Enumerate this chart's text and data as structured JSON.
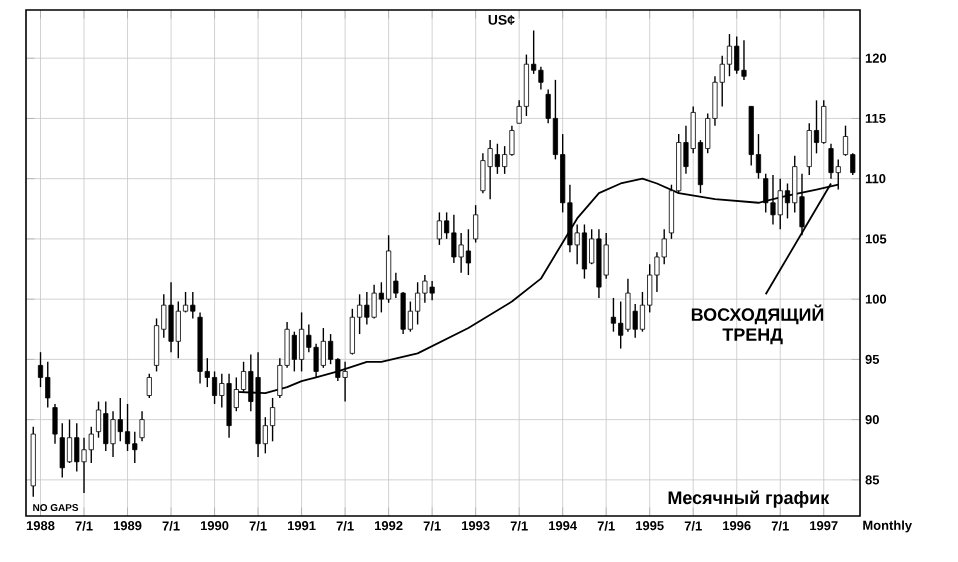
{
  "chart_data": {
    "type": "candlestick",
    "title": "US¢",
    "x": [
      "1987-12",
      "1988-01",
      "1988-02",
      "1988-03",
      "1988-04",
      "1988-05",
      "1988-06",
      "1988-07",
      "1988-08",
      "1988-09",
      "1988-10",
      "1988-11",
      "1988-12",
      "1989-01",
      "1989-02",
      "1989-03",
      "1989-04",
      "1989-05",
      "1989-06",
      "1989-07",
      "1989-08",
      "1989-09",
      "1989-10",
      "1989-11",
      "1989-12",
      "1990-01",
      "1990-02",
      "1990-03",
      "1990-04",
      "1990-05",
      "1990-06",
      "1990-07",
      "1990-08",
      "1990-09",
      "1990-10",
      "1990-11",
      "1990-12",
      "1991-01",
      "1991-02",
      "1991-03",
      "1991-04",
      "1991-05",
      "1991-06",
      "1991-07",
      "1991-08",
      "1991-09",
      "1991-10",
      "1991-11",
      "1991-12",
      "1992-01",
      "1992-02",
      "1992-03",
      "1992-04",
      "1992-05",
      "1992-06",
      "1992-07",
      "1992-08",
      "1992-09",
      "1992-10",
      "1992-11",
      "1992-12",
      "1993-01",
      "1993-02",
      "1993-03",
      "1993-04",
      "1993-05",
      "1993-06",
      "1993-07",
      "1993-08",
      "1993-09",
      "1993-10",
      "1993-11",
      "1993-12",
      "1994-01",
      "1994-02",
      "1994-03",
      "1994-04",
      "1994-05",
      "1994-06",
      "1994-07",
      "1994-08",
      "1994-09",
      "1994-10",
      "1994-11",
      "1994-12",
      "1995-01",
      "1995-02",
      "1995-03",
      "1995-04",
      "1995-05",
      "1995-06",
      "1995-07",
      "1995-08",
      "1995-09",
      "1995-10",
      "1995-11",
      "1995-12",
      "1996-01",
      "1996-02",
      "1996-03",
      "1996-04",
      "1996-05",
      "1996-06",
      "1996-07",
      "1996-08",
      "1996-09",
      "1996-10",
      "1996-11",
      "1996-12",
      "1997-01",
      "1997-02",
      "1997-03",
      "1997-04",
      "1997-05"
    ],
    "ohlc": [
      [
        84.5,
        89.4,
        83.6,
        88.8
      ],
      [
        94.5,
        95.6,
        92.7,
        93.5
      ],
      [
        93.5,
        94.8,
        91.0,
        91.8
      ],
      [
        91.0,
        91.3,
        88.0,
        88.8
      ],
      [
        88.5,
        89.7,
        85.2,
        86.0
      ],
      [
        86.5,
        90.0,
        86.4,
        88.5
      ],
      [
        88.5,
        89.7,
        85.7,
        86.5
      ],
      [
        86.5,
        88.5,
        83.9,
        87.5
      ],
      [
        87.5,
        89.4,
        86.4,
        88.8
      ],
      [
        89.0,
        91.5,
        88.5,
        90.8
      ],
      [
        90.5,
        91.5,
        87.4,
        88.0
      ],
      [
        88.0,
        90.7,
        86.9,
        90.0
      ],
      [
        90.0,
        91.8,
        88.2,
        89.0
      ],
      [
        89.0,
        91.3,
        87.4,
        88.0
      ],
      [
        88.0,
        89.0,
        86.4,
        87.5
      ],
      [
        88.5,
        90.7,
        88.2,
        90.0
      ],
      [
        92.0,
        93.8,
        91.8,
        93.5
      ],
      [
        94.5,
        98.4,
        94.0,
        97.8
      ],
      [
        97.5,
        100.4,
        96.8,
        99.5
      ],
      [
        99.5,
        101.4,
        95.6,
        96.5
      ],
      [
        96.5,
        99.8,
        95.1,
        99.0
      ],
      [
        99.0,
        100.6,
        98.9,
        99.5
      ],
      [
        99.5,
        100.6,
        98.4,
        99.0
      ],
      [
        98.5,
        98.9,
        93.0,
        94.0
      ],
      [
        94.0,
        95.1,
        92.7,
        93.5
      ],
      [
        93.5,
        94.0,
        91.3,
        92.0
      ],
      [
        92.0,
        93.8,
        91.0,
        93.0
      ],
      [
        93.0,
        93.8,
        88.5,
        89.5
      ],
      [
        91.0,
        93.5,
        90.7,
        92.5
      ],
      [
        92.5,
        94.8,
        92.3,
        94.0
      ],
      [
        94.0,
        95.4,
        90.7,
        91.5
      ],
      [
        93.5,
        95.6,
        86.9,
        88.0
      ],
      [
        88.0,
        90.2,
        87.2,
        89.5
      ],
      [
        89.5,
        91.8,
        88.2,
        91.0
      ],
      [
        92.0,
        95.1,
        91.8,
        94.5
      ],
      [
        94.5,
        98.1,
        94.3,
        97.5
      ],
      [
        97.0,
        97.3,
        94.0,
        95.0
      ],
      [
        95.0,
        98.9,
        94.0,
        97.5
      ],
      [
        97.0,
        97.9,
        95.6,
        96.0
      ],
      [
        96.0,
        96.3,
        93.5,
        94.0
      ],
      [
        94.5,
        97.6,
        94.3,
        96.5
      ],
      [
        96.5,
        97.1,
        94.6,
        95.0
      ],
      [
        95.0,
        95.1,
        93.2,
        93.5
      ],
      [
        93.5,
        94.8,
        91.5,
        94.0
      ],
      [
        95.5,
        99.2,
        95.4,
        98.5
      ],
      [
        98.5,
        100.4,
        97.1,
        99.5
      ],
      [
        99.5,
        100.6,
        97.9,
        98.5
      ],
      [
        98.5,
        101.2,
        98.4,
        100.5
      ],
      [
        100.5,
        101.4,
        98.9,
        100.0
      ],
      [
        100.0,
        105.3,
        99.7,
        104.0
      ],
      [
        101.5,
        102.2,
        100.1,
        100.5
      ],
      [
        100.5,
        100.6,
        97.1,
        97.5
      ],
      [
        97.5,
        99.8,
        97.3,
        99.0
      ],
      [
        99.0,
        101.4,
        97.9,
        100.5
      ],
      [
        100.5,
        102.0,
        99.7,
        101.5
      ],
      [
        101.0,
        101.5,
        99.9,
        100.5
      ],
      [
        105.0,
        107.2,
        104.5,
        106.5
      ],
      [
        106.5,
        107.2,
        105.0,
        105.5
      ],
      [
        105.5,
        107.0,
        103.0,
        103.5
      ],
      [
        103.5,
        105.5,
        102.2,
        104.5
      ],
      [
        104.0,
        105.8,
        102.0,
        103.0
      ],
      [
        105.0,
        107.8,
        104.7,
        107.0
      ],
      [
        109.0,
        112.1,
        108.8,
        111.5
      ],
      [
        111.0,
        113.2,
        108.3,
        112.5
      ],
      [
        112.0,
        112.9,
        110.4,
        111.0
      ],
      [
        111.0,
        112.7,
        110.4,
        112.0
      ],
      [
        112.0,
        114.4,
        111.9,
        114.0
      ],
      [
        114.6,
        116.5,
        114.6,
        116.0
      ],
      [
        116.0,
        120.3,
        115.2,
        119.5
      ],
      [
        119.5,
        122.3,
        118.7,
        119.0
      ],
      [
        119.0,
        119.3,
        117.4,
        118.0
      ],
      [
        117.0,
        117.4,
        114.6,
        115.0
      ],
      [
        115.0,
        118.2,
        111.6,
        112.0
      ],
      [
        112.0,
        113.7,
        107.2,
        108.0
      ],
      [
        108.0,
        109.5,
        103.9,
        104.5
      ],
      [
        104.5,
        106.2,
        102.9,
        105.5
      ],
      [
        105.5,
        106.2,
        101.7,
        102.5
      ],
      [
        103.0,
        105.8,
        102.9,
        105.0
      ],
      [
        105.0,
        105.8,
        100.1,
        101.0
      ],
      [
        102.0,
        105.5,
        101.7,
        104.5
      ],
      [
        98.5,
        100.1,
        97.3,
        98.0
      ],
      [
        98.0,
        99.8,
        95.9,
        97.0
      ],
      [
        97.5,
        101.7,
        97.3,
        100.5
      ],
      [
        99.0,
        99.6,
        96.8,
        97.5
      ],
      [
        97.5,
        100.6,
        97.3,
        99.5
      ],
      [
        99.5,
        102.9,
        98.9,
        102.0
      ],
      [
        102.0,
        103.9,
        100.6,
        103.5
      ],
      [
        103.5,
        105.8,
        102.9,
        105.0
      ],
      [
        105.5,
        109.5,
        105.0,
        109.0
      ],
      [
        109.0,
        113.7,
        108.8,
        113.0
      ],
      [
        113.0,
        114.4,
        110.4,
        111.0
      ],
      [
        112.5,
        116.0,
        112.1,
        115.5
      ],
      [
        113.0,
        113.2,
        108.8,
        109.5
      ],
      [
        112.5,
        115.4,
        112.1,
        115.0
      ],
      [
        115.0,
        118.5,
        114.4,
        118.0
      ],
      [
        118.0,
        120.2,
        116.0,
        119.5
      ],
      [
        119.5,
        122.0,
        118.5,
        121.0
      ],
      [
        121.0,
        121.8,
        118.7,
        119.0
      ],
      [
        119.0,
        121.5,
        118.2,
        118.5
      ],
      [
        116.0,
        116.0,
        111.1,
        112.0
      ],
      [
        112.0,
        113.7,
        110.0,
        110.5
      ],
      [
        110.0,
        110.4,
        107.2,
        108.0
      ],
      [
        108.0,
        110.3,
        106.2,
        107.0
      ],
      [
        107.0,
        110.0,
        105.8,
        109.0
      ],
      [
        109.0,
        109.6,
        106.7,
        108.0
      ],
      [
        108.0,
        111.9,
        107.2,
        111.0
      ],
      [
        108.5,
        110.4,
        105.3,
        106.0
      ],
      [
        111.0,
        114.6,
        110.3,
        114.0
      ],
      [
        114.0,
        116.5,
        112.1,
        113.0
      ],
      [
        113.0,
        116.5,
        112.9,
        116.0
      ],
      [
        112.5,
        112.9,
        110.0,
        110.5
      ],
      [
        110.5,
        111.6,
        109.1,
        111.0
      ],
      [
        112.0,
        114.4,
        111.9,
        113.5
      ],
      [
        112.0,
        112.1,
        110.3,
        110.5
      ]
    ],
    "series": [
      {
        "type": "line",
        "color": "#000000",
        "x": [
          "1990-04",
          "1990-08",
          "1990-11",
          "1991-01",
          "1991-03",
          "1991-06",
          "1991-10",
          "1991-12",
          "1992-05",
          "1992-12",
          "1993-06",
          "1993-10",
          "1994-03",
          "1994-06",
          "1994-09",
          "1994-12",
          "1995-02",
          "1995-05",
          "1995-10",
          "1996-04",
          "1996-08",
          "1996-12",
          "1997-03"
        ],
        "values": [
          92.3,
          92.2,
          92.7,
          93.2,
          93.5,
          94.0,
          94.8,
          94.8,
          95.5,
          97.6,
          99.8,
          101.7,
          106.7,
          108.8,
          109.6,
          110.0,
          109.6,
          108.8,
          108.3,
          108.0,
          108.6,
          109.1,
          109.5
        ]
      },
      {
        "type": "line",
        "color": "#000000",
        "x": [
          "1996-05",
          "1997-02"
        ],
        "values": [
          100.4,
          109.6
        ]
      }
    ],
    "xlim": [
      "1987-11",
      "1997-06"
    ],
    "ylim": [
      82,
      124
    ],
    "xticks": [
      {
        "value": "1988-01",
        "label": "1988"
      },
      {
        "value": "1988-07",
        "label": "7/1"
      },
      {
        "value": "1989-01",
        "label": "1989"
      },
      {
        "value": "1989-07",
        "label": "7/1"
      },
      {
        "value": "1990-01",
        "label": "1990"
      },
      {
        "value": "1990-07",
        "label": "7/1"
      },
      {
        "value": "1991-01",
        "label": "1991"
      },
      {
        "value": "1991-07",
        "label": "7/1"
      },
      {
        "value": "1992-01",
        "label": "1992"
      },
      {
        "value": "1992-07",
        "label": "7/1"
      },
      {
        "value": "1993-01",
        "label": "1993"
      },
      {
        "value": "1993-07",
        "label": "7/1"
      },
      {
        "value": "1994-01",
        "label": "1994"
      },
      {
        "value": "1994-07",
        "label": "7/1"
      },
      {
        "value": "1995-01",
        "label": "1995"
      },
      {
        "value": "1995-07",
        "label": "7/1"
      },
      {
        "value": "1996-01",
        "label": "1996"
      },
      {
        "value": "1996-07",
        "label": "7/1"
      },
      {
        "value": "1997-01",
        "label": "1997"
      }
    ],
    "yticks": [
      85,
      90,
      95,
      100,
      105,
      110,
      115,
      120
    ],
    "grid": true,
    "annotations": [
      "NO GAPS",
      "ВОСХОДЯЩИЙ ТРЕНД",
      "Месячный график",
      "Monthly"
    ]
  }
}
